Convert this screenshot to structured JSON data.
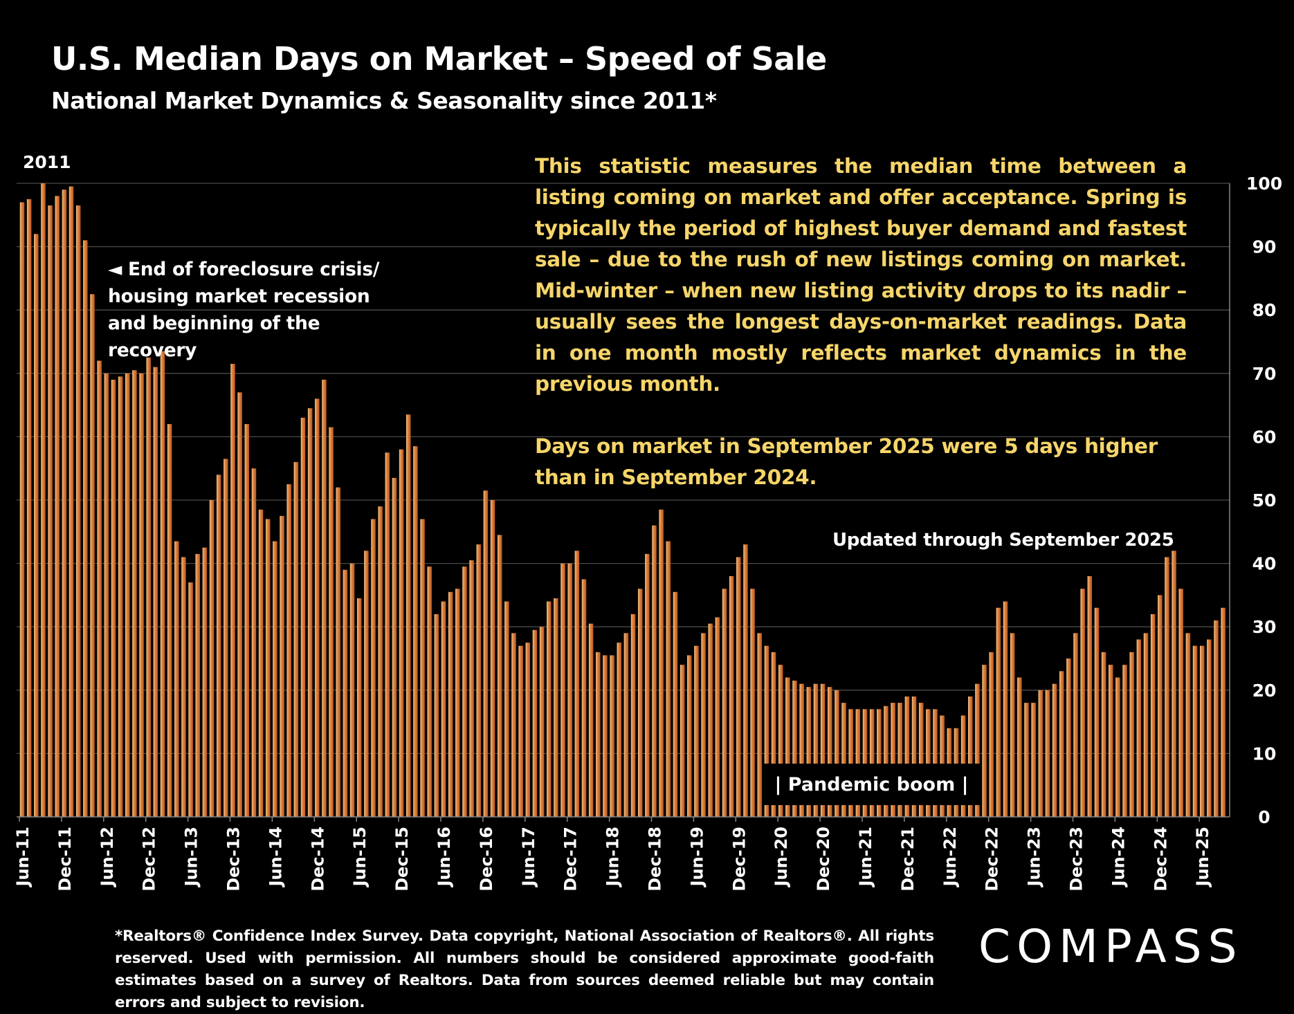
{
  "header": {
    "title": "U.S. Median Days on Market – Speed of Sale",
    "subtitle": "National Market Dynamics & Seasonality since 2011*"
  },
  "annotations": {
    "start_year": "2011",
    "recovery_note": "◄ End of foreclosure crisis/ housing market recession and beginning of the recovery",
    "description": "This statistic measures the median time between a listing coming on market and offer acceptance. Spring is typically the period of highest buyer demand and fastest sale – due to the rush of new listings coming on market. Mid-winter – when new listing activity drops to its nadir – usually sees the longest days-on-market readings. Data in one month mostly reflects market dynamics in the previous month.",
    "comparison": "Days on market in September 2025 were 5 days higher than in September 2024.",
    "updated": "Updated through September 2025",
    "pandemic": "| Pandemic boom |"
  },
  "footer": {
    "disclaimer": "*Realtors® Confidence Index Survey. Data copyright, National Association of Realtors®. All rights reserved. Used with permission. All numbers should be considered approximate good-faith estimates based on a survey of Realtors. Data from sources deemed reliable but may contain errors and subject to revision.",
    "logo": "COMPASS"
  },
  "colors": {
    "bar": "#c8662a",
    "bar_highlight": "#f3c58a",
    "text_accent": "#f6d56a",
    "grid": "#4a4a4a",
    "background": "#000000"
  },
  "chart_data": {
    "type": "bar",
    "title": "U.S. Median Days on Market – Speed of Sale",
    "xlabel": "",
    "ylabel": "",
    "ylim": [
      0,
      100
    ],
    "yticks": [
      0,
      10,
      20,
      30,
      40,
      50,
      60,
      70,
      80,
      90,
      100
    ],
    "y_axis_side": "right",
    "grid": true,
    "categories": [
      "Jun-11",
      "Jul-11",
      "Aug-11",
      "Sep-11",
      "Oct-11",
      "Nov-11",
      "Dec-11",
      "Jan-12",
      "Feb-12",
      "Mar-12",
      "Apr-12",
      "May-12",
      "Jun-12",
      "Jul-12",
      "Aug-12",
      "Sep-12",
      "Oct-12",
      "Nov-12",
      "Dec-12",
      "Jan-13",
      "Feb-13",
      "Mar-13",
      "Apr-13",
      "May-13",
      "Jun-13",
      "Jul-13",
      "Aug-13",
      "Sep-13",
      "Oct-13",
      "Nov-13",
      "Dec-13",
      "Jan-14",
      "Feb-14",
      "Mar-14",
      "Apr-14",
      "May-14",
      "Jun-14",
      "Jul-14",
      "Aug-14",
      "Sep-14",
      "Oct-14",
      "Nov-14",
      "Dec-14",
      "Jan-15",
      "Feb-15",
      "Mar-15",
      "Apr-15",
      "May-15",
      "Jun-15",
      "Jul-15",
      "Aug-15",
      "Sep-15",
      "Oct-15",
      "Nov-15",
      "Dec-15",
      "Jan-16",
      "Feb-16",
      "Mar-16",
      "Apr-16",
      "May-16",
      "Jun-16",
      "Jul-16",
      "Aug-16",
      "Sep-16",
      "Oct-16",
      "Nov-16",
      "Dec-16",
      "Jan-17",
      "Feb-17",
      "Mar-17",
      "Apr-17",
      "May-17",
      "Jun-17",
      "Jul-17",
      "Aug-17",
      "Sep-17",
      "Oct-17",
      "Nov-17",
      "Dec-17",
      "Jan-18",
      "Feb-18",
      "Mar-18",
      "Apr-18",
      "May-18",
      "Jun-18",
      "Jul-18",
      "Aug-18",
      "Sep-18",
      "Oct-18",
      "Nov-18",
      "Dec-18",
      "Jan-19",
      "Feb-19",
      "Mar-19",
      "Apr-19",
      "May-19",
      "Jun-19",
      "Jul-19",
      "Aug-19",
      "Sep-19",
      "Oct-19",
      "Nov-19",
      "Dec-19",
      "Jan-20",
      "Feb-20",
      "Mar-20",
      "Apr-20",
      "May-20",
      "Jun-20",
      "Jul-20",
      "Aug-20",
      "Sep-20",
      "Oct-20",
      "Nov-20",
      "Dec-20",
      "Jan-21",
      "Feb-21",
      "Mar-21",
      "Apr-21",
      "May-21",
      "Jun-21",
      "Jul-21",
      "Aug-21",
      "Sep-21",
      "Oct-21",
      "Nov-21",
      "Dec-21",
      "Jan-22",
      "Feb-22",
      "Mar-22",
      "Apr-22",
      "May-22",
      "Jun-22",
      "Jul-22",
      "Aug-22",
      "Sep-22",
      "Oct-22",
      "Nov-22",
      "Dec-22",
      "Jan-23",
      "Feb-23",
      "Mar-23",
      "Apr-23",
      "May-23",
      "Jun-23",
      "Jul-23",
      "Aug-23",
      "Sep-23",
      "Oct-23",
      "Nov-23",
      "Dec-23",
      "Jan-24",
      "Feb-24",
      "Mar-24",
      "Apr-24",
      "May-24",
      "Jun-24",
      "Jul-24",
      "Aug-24",
      "Sep-24",
      "Oct-24",
      "Nov-24",
      "Dec-24",
      "Jan-25",
      "Feb-25",
      "Mar-25",
      "Apr-25",
      "May-25",
      "Jun-25",
      "Jul-25",
      "Aug-25",
      "Sep-25"
    ],
    "values": [
      97,
      97.5,
      92,
      100,
      96.5,
      98,
      99,
      99.5,
      96.5,
      91,
      82.5,
      72,
      70,
      69,
      69.5,
      70,
      70.5,
      70,
      72.5,
      71,
      73.5,
      62,
      43.5,
      41,
      37,
      41.5,
      42.5,
      50,
      54,
      56.5,
      71.5,
      67,
      62,
      55,
      48.5,
      47,
      43.5,
      47.5,
      52.5,
      56,
      63,
      64.5,
      66,
      69,
      61.5,
      52,
      39,
      40,
      34.5,
      42,
      47,
      49,
      57.5,
      53.5,
      58,
      63.5,
      58.5,
      47,
      39.5,
      32,
      34,
      35.5,
      36,
      39.5,
      40.5,
      43,
      51.5,
      50,
      44.5,
      34,
      29,
      27,
      27.5,
      29.5,
      30,
      34,
      34.5,
      40,
      40,
      42,
      37.5,
      30.5,
      26,
      25.5,
      25.5,
      27.5,
      29,
      32,
      36,
      41.5,
      46,
      48.5,
      43.5,
      35.5,
      24,
      25.5,
      27,
      29,
      30.5,
      31.5,
      36,
      38,
      41,
      43,
      36,
      29,
      27,
      26,
      24,
      22,
      21.5,
      21,
      20.5,
      21,
      21,
      20.5,
      20,
      18,
      17,
      17,
      17,
      17,
      17,
      17.5,
      18,
      18,
      19,
      19,
      18,
      17,
      17,
      16,
      14,
      14,
      16,
      19,
      21,
      24,
      26,
      33,
      34,
      29,
      22,
      18,
      18,
      20,
      20,
      21,
      23,
      25,
      29,
      36,
      38,
      33,
      26,
      24,
      22,
      24,
      26,
      28,
      29,
      32,
      35,
      41,
      42,
      36,
      29,
      27,
      27,
      28,
      31,
      33
    ],
    "xtick_labels": [
      "Jun-11",
      "Dec-11",
      "Jun-12",
      "Dec-12",
      "Jun-13",
      "Dec-13",
      "Jun-14",
      "Dec-14",
      "Jun-15",
      "Dec-15",
      "Jun-16",
      "Dec-16",
      "Jun-17",
      "Dec-17",
      "Jun-18",
      "Dec-18",
      "Jun-19",
      "Dec-19",
      "Jun-20",
      "Dec-20",
      "Jun-21",
      "Dec-21",
      "Jun-22",
      "Dec-22",
      "Jun-23",
      "Dec-23",
      "Jun-24",
      "Dec-24",
      "Jun-25"
    ]
  }
}
